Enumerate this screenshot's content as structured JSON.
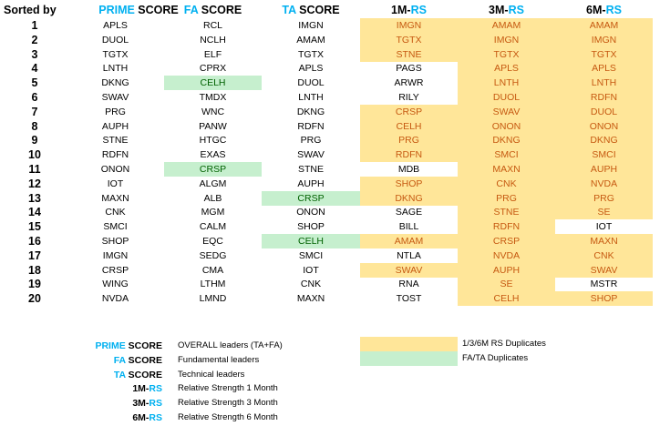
{
  "colors": {
    "accent": "#00B0F0",
    "duplicate_rs_fill": "#FFE699",
    "duplicate_rs_text": "#C65911",
    "duplicate_fata_fill": "#C6EFCE",
    "duplicate_fata_text": "#006100"
  },
  "header": {
    "sorted_by": "Sorted by",
    "prime": {
      "accent": "PRIME",
      "rest": " SCORE"
    },
    "fa": {
      "accent": "FA",
      "rest": "  SCORE"
    },
    "ta": {
      "accent": "TA",
      "rest": " SCORE"
    },
    "rs1": {
      "prefix": "1M-",
      "accent": "RS"
    },
    "rs3": {
      "prefix": "3M-",
      "accent": "RS"
    },
    "rs6": {
      "prefix": "6M-",
      "accent": "RS"
    }
  },
  "rows": [
    {
      "rank": "1",
      "prime": "APLS",
      "fa": "RCL",
      "ta": "IMGN",
      "rs1": "IMGN",
      "rs3": "AMAM",
      "rs6": "AMAM"
    },
    {
      "rank": "2",
      "prime": "DUOL",
      "fa": "NCLH",
      "ta": "AMAM",
      "rs1": "TGTX",
      "rs3": "IMGN",
      "rs6": "IMGN"
    },
    {
      "rank": "3",
      "prime": "TGTX",
      "fa": "ELF",
      "ta": "TGTX",
      "rs1": "STNE",
      "rs3": "TGTX",
      "rs6": "TGTX"
    },
    {
      "rank": "4",
      "prime": "LNTH",
      "fa": "CPRX",
      "ta": "APLS",
      "rs1": "PAGS",
      "rs3": "APLS",
      "rs6": "APLS"
    },
    {
      "rank": "5",
      "prime": "DKNG",
      "fa": "CELH",
      "ta": "DUOL",
      "rs1": "ARWR",
      "rs3": "LNTH",
      "rs6": "LNTH"
    },
    {
      "rank": "6",
      "prime": "SWAV",
      "fa": "TMDX",
      "ta": "LNTH",
      "rs1": "RILY",
      "rs3": "DUOL",
      "rs6": "RDFN"
    },
    {
      "rank": "7",
      "prime": "PRG",
      "fa": "WNC",
      "ta": "DKNG",
      "rs1": "CRSP",
      "rs3": "SWAV",
      "rs6": "DUOL"
    },
    {
      "rank": "8",
      "prime": "AUPH",
      "fa": "PANW",
      "ta": "RDFN",
      "rs1": "CELH",
      "rs3": "ONON",
      "rs6": "ONON"
    },
    {
      "rank": "9",
      "prime": "STNE",
      "fa": "HTGC",
      "ta": "PRG",
      "rs1": "PRG",
      "rs3": "DKNG",
      "rs6": "DKNG"
    },
    {
      "rank": "10",
      "prime": "RDFN",
      "fa": "EXAS",
      "ta": "SWAV",
      "rs1": "RDFN",
      "rs3": "SMCI",
      "rs6": "SMCI"
    },
    {
      "rank": "11",
      "prime": "ONON",
      "fa": "CRSP",
      "ta": "STNE",
      "rs1": "MDB",
      "rs3": "MAXN",
      "rs6": "AUPH"
    },
    {
      "rank": "12",
      "prime": "IOT",
      "fa": "ALGM",
      "ta": "AUPH",
      "rs1": "SHOP",
      "rs3": "CNK",
      "rs6": "NVDA"
    },
    {
      "rank": "13",
      "prime": "MAXN",
      "fa": "ALB",
      "ta": "CRSP",
      "rs1": "DKNG",
      "rs3": "PRG",
      "rs6": "PRG"
    },
    {
      "rank": "14",
      "prime": "CNK",
      "fa": "MGM",
      "ta": "ONON",
      "rs1": "SAGE",
      "rs3": "STNE",
      "rs6": "SE"
    },
    {
      "rank": "15",
      "prime": "SMCI",
      "fa": "CALM",
      "ta": "SHOP",
      "rs1": "BILL",
      "rs3": "RDFN",
      "rs6": "IOT"
    },
    {
      "rank": "16",
      "prime": "SHOP",
      "fa": "EQC",
      "ta": "CELH",
      "rs1": "AMAM",
      "rs3": "CRSP",
      "rs6": "MAXN"
    },
    {
      "rank": "17",
      "prime": "IMGN",
      "fa": "SEDG",
      "ta": "SMCI",
      "rs1": "NTLA",
      "rs3": "NVDA",
      "rs6": "CNK"
    },
    {
      "rank": "18",
      "prime": "CRSP",
      "fa": "CMA",
      "ta": "IOT",
      "rs1": "SWAV",
      "rs3": "AUPH",
      "rs6": "SWAV"
    },
    {
      "rank": "19",
      "prime": "WING",
      "fa": "LTHM",
      "ta": "CNK",
      "rs1": "RNA",
      "rs3": "SE",
      "rs6": "MSTR"
    },
    {
      "rank": "20",
      "prime": "NVDA",
      "fa": "LMND",
      "ta": "MAXN",
      "rs1": "TOST",
      "rs3": "CELH",
      "rs6": "SHOP"
    }
  ],
  "legend": {
    "items": [
      {
        "accent": "PRIME",
        "rest": " SCORE",
        "desc": "OVERALL leaders (TA+FA)"
      },
      {
        "accent": "FA",
        "rest": " SCORE",
        "desc": "Fundamental leaders"
      },
      {
        "accent": "TA",
        "rest": " SCORE",
        "desc": "Technical leaders"
      },
      {
        "prefix": "1M-",
        "accent": "RS",
        "desc": "Relative Strength 1 Month"
      },
      {
        "prefix": "3M-",
        "accent": "RS",
        "desc": "Relative Strength 3 Month"
      },
      {
        "prefix": "6M-",
        "accent": "RS",
        "desc": "Relative Strength 6 Month"
      }
    ],
    "swatches": [
      {
        "label": "1/3/6M RS Duplicates"
      },
      {
        "label": "FA/TA Duplicates"
      }
    ]
  }
}
